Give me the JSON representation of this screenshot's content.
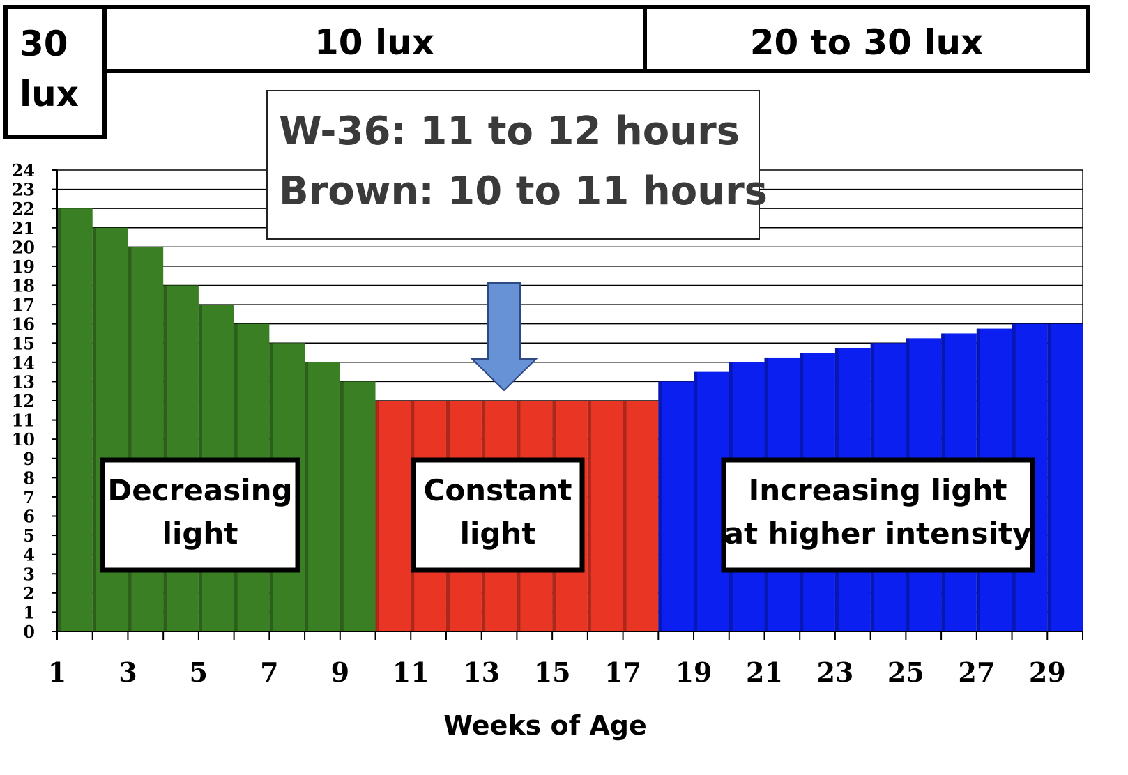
{
  "header": {
    "lux_30": [
      "30",
      "lux"
    ],
    "lux_10": "10 lux",
    "lux_20_30": "20 to 30 lux"
  },
  "callout": {
    "line1": "W-36: 11 to 12 hours",
    "line2": "Brown: 10 to 11 hours"
  },
  "phase_labels": {
    "decreasing": [
      "Decreasing",
      "light"
    ],
    "constant": [
      "Constant",
      "light"
    ],
    "increasing": [
      "Increasing light",
      "at higher intensity"
    ]
  },
  "colors": {
    "decreasing": "#3a7f23",
    "constant": "#e83524",
    "increasing": "#0a1ff0",
    "arrow": "#6892d6",
    "grid": "#000000"
  },
  "chart_data": {
    "type": "bar",
    "xlabel": "Weeks of Age",
    "ylabel": "",
    "ylim": [
      0,
      24
    ],
    "yticks": [
      0,
      1,
      2,
      3,
      4,
      5,
      6,
      7,
      8,
      9,
      10,
      11,
      12,
      13,
      14,
      15,
      16,
      17,
      18,
      19,
      20,
      21,
      22,
      23,
      24
    ],
    "xtick_labels": [
      "1",
      "3",
      "5",
      "7",
      "9",
      "11",
      "13",
      "15",
      "17",
      "19",
      "21",
      "23",
      "25",
      "27",
      "29"
    ],
    "grid": true,
    "categories": [
      1,
      2,
      3,
      4,
      5,
      6,
      7,
      8,
      9,
      10,
      11,
      12,
      13,
      14,
      15,
      16,
      17,
      18,
      19,
      20,
      21,
      22,
      23,
      24,
      25,
      26,
      27,
      28,
      29
    ],
    "values": [
      22,
      21,
      20,
      18,
      17,
      16,
      15,
      14,
      13,
      12,
      12,
      12,
      12,
      12,
      12,
      12,
      12,
      13,
      13.5,
      14,
      14.25,
      14.5,
      14.75,
      15,
      15.25,
      15.5,
      15.75,
      16,
      16
    ],
    "phases": [
      {
        "name": "Decreasing light",
        "from_week": 1,
        "to_week": 9
      },
      {
        "name": "Constant light",
        "from_week": 10,
        "to_week": 17
      },
      {
        "name": "Increasing light at higher intensity",
        "from_week": 18,
        "to_week": 29
      }
    ]
  }
}
